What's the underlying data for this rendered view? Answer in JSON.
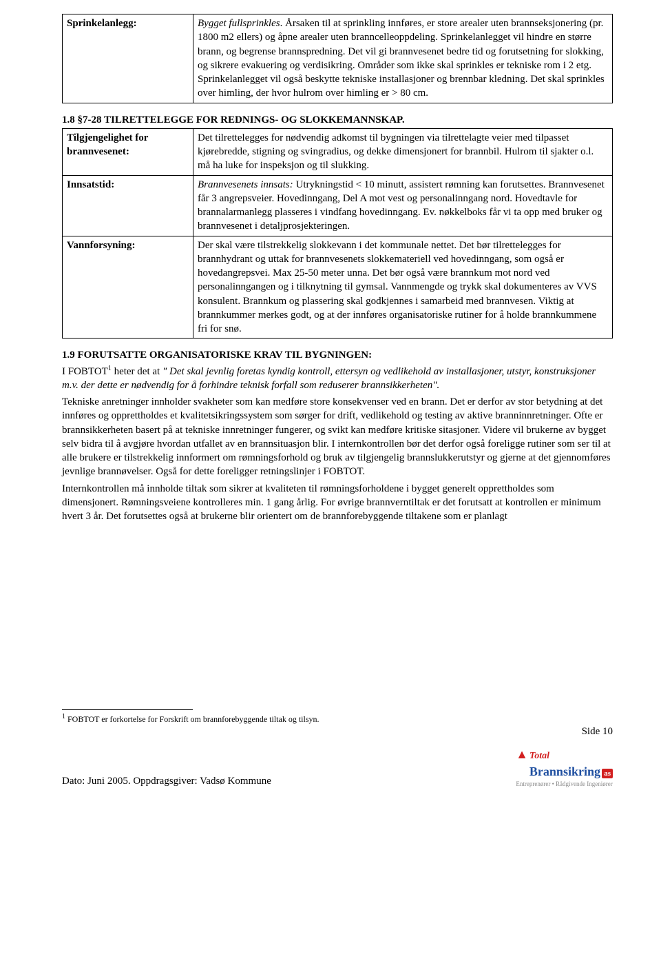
{
  "table1": {
    "label": "Sprinkelanlegg:",
    "text": "Bygget fullsprinkles.  Årsaken til at sprinkling innføres, er store arealer uten brannseksjonering (pr. 1800 m2 ellers)  og åpne arealer uten branncelleoppdeling.  Sprinkelanlegget vil hindre en større brann, og begrense brannspredning.  Det vil gi brannvesenet bedre tid og forutsetning for slokking, og sikrere evakuering og verdisikring.   Områder som ikke skal sprinkles er tekniske rom i 2 etg.   Sprinkelanlegget vil også beskytte tekniske installasjoner og brennbar kledning.   Det skal sprinkles over himling, der hvor hulrom over himling er > 80 cm."
  },
  "section_1_8": {
    "heading": "1.8    §7-28 TILRETTELEGGE FOR REDNINGS- OG SLOKKEMANNSKAP.",
    "rows": [
      {
        "label": "Tilgjengelighet for brannvesenet:",
        "text": "Det tilrettelegges for nødvendig adkomst til bygningen via tilrettelagte veier med tilpasset kjørebredde, stigning og svingradius, og dekke dimensjonert for brannbil.   Hulrom til sjakter o.l. må ha luke for inspeksjon og til slukking."
      },
      {
        "label": "Innsatstid:",
        "text_italic": "Brannvesenets innsats:",
        "text_rest": " Utrykningstid < 10 minutt, assistert rømning kan forutsettes. Brannvesenet får 3 angrepsveier.   Hovedinngang, Del A mot vest og personalinngang nord.  Hovedtavle for brannalarmanlegg plasseres i vindfang hovedinngang. Ev. nøkkelboks får vi ta opp med bruker og brannvesenet i detaljprosjekteringen."
      },
      {
        "label": "Vannforsyning:",
        "text": "Der skal være tilstrekkelig slokkevann i det kommunale nettet.   Det bør tilrettelegges for brannhydrant og uttak for brannvesenets slokkemateriell ved hovedinngang, som også er hovedangrepsvei.  Max 25-50 meter unna.  Det bør også være brannkum mot nord ved personalinngangen og i tilknytning til gymsal.   Vannmengde og trykk skal dokumenteres av VVS konsulent.   Brannkum og plassering skal godkjennes i samarbeid med brannvesen.   Viktig at brannkummer merkes godt, og at der innføres organisatoriske rutiner for å holde brannkummene fri for snø."
      }
    ]
  },
  "section_1_9": {
    "heading": "1.9  FORUTSATTE ORGANISATORISKE KRAV TIL BYGNINGEN:",
    "p1_a": "I FOBTOT",
    "p1_sup": "1",
    "p1_b": " heter det at ",
    "p1_quote": "\" Det skal jevnlig foretas kyndig kontroll, ettersyn og vedlikehold av installasjoner, utstyr, konstruksjoner m.v. der dette  er nødvendig for å forhindre teknisk forfall som reduserer brannsikkerheten\".",
    "p2": "Tekniske anretninger innholder svakheter som kan medføre store konsekvenser ved en brann. Det er derfor av stor betydning at det innføres og opprettholdes et kvalitetsikringssystem som sørger for drift, vedlikehold og testing av aktive branninnretninger.   Ofte er brannsikkerheten basert på at tekniske innretninger fungerer, og svikt kan medføre kritiske sitasjoner.   Videre vil brukerne av bygget selv bidra til å avgjøre hvordan utfallet av en brannsituasjon blir. I internkontrollen bør det derfor også foreligge rutiner som ser til at alle brukere er tilstrekkelig innformert om rømningsforhold og bruk av tilgjengelig brannslukkerutstyr og gjerne at det gjennomføres jevnlige brannøvelser.   Også for dette foreligger retningslinjer i FOBTOT.",
    "p3": "Internkontrollen må innholde tiltak som sikrer at kvaliteten til rømningsforholdene i bygget generelt opprettholdes som dimensjonert. Rømningsveiene kontrolleres min. 1 gang årlig.  For øvrige brannverntiltak er det forutsatt at kontrollen er minimum hvert  3 år.   Det forutsettes også at brukerne blir orientert om de brannforebyggende tiltakene som er planlagt"
  },
  "footnote": {
    "mark": "1",
    "text": " FOBTOT er forkortelse for Forskrift om brannforebyggende tiltak og tilsyn."
  },
  "footer": {
    "page": "Side 10",
    "date": "Dato: Juni 2005.   Oppdragsgiver: Vadsø Kommune",
    "logo_total": "Total",
    "logo_brann": "Brannsikring",
    "logo_as": "as",
    "logo_tag": "Entreprenører • Rådgivende Ingeniører"
  }
}
